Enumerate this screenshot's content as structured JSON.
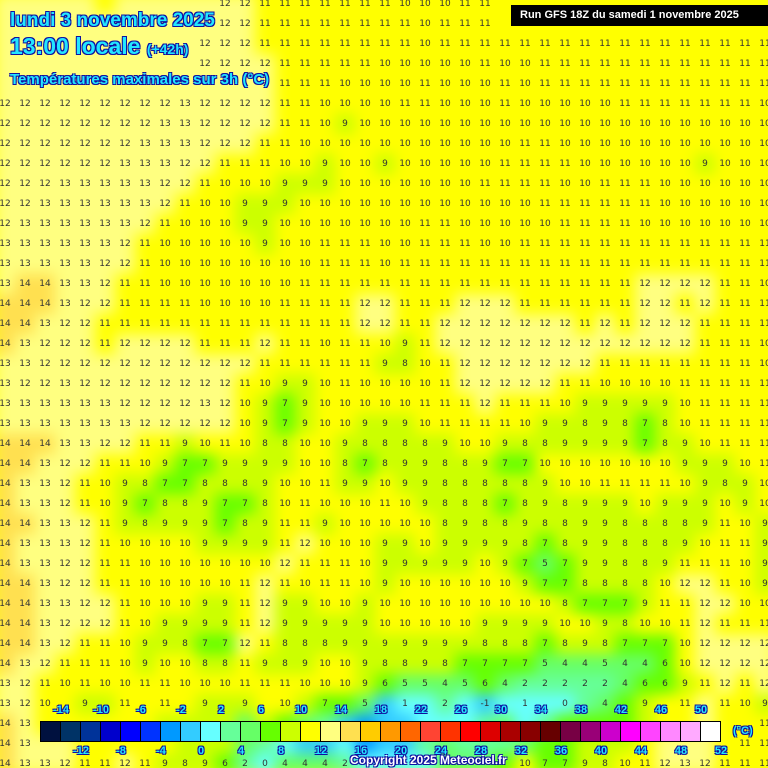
{
  "header": {
    "date": "lundi 3 novembre 2025",
    "time": "13:00 locale",
    "lead": "(+42h)",
    "parameter": "Températures maximales sur 3h (°C)",
    "run": "Run GFS 18Z du samedi 1 novembre 2025"
  },
  "legend": {
    "unit": "(°C)",
    "top_labels": [
      "-14",
      "-10",
      "-6",
      "-2",
      "2",
      "6",
      "10",
      "14",
      "18",
      "22",
      "26",
      "30",
      "34",
      "38",
      "42",
      "46",
      "50"
    ],
    "bottom_labels": [
      "-12",
      "-8",
      "-4",
      "0",
      "4",
      "8",
      "12",
      "16",
      "20",
      "24",
      "28",
      "32",
      "36",
      "40",
      "44",
      "48",
      "52"
    ],
    "colors": [
      "#00113f",
      "#003366",
      "#003399",
      "#0000cc",
      "#0000ff",
      "#0033ff",
      "#0099ff",
      "#33ccff",
      "#66ffff",
      "#66ff99",
      "#66ff66",
      "#66ff00",
      "#ccff00",
      "#ffff00",
      "#ffff80",
      "#ffe050",
      "#ffcc00",
      "#ff9900",
      "#ff6600",
      "#ff4433",
      "#ff3300",
      "#ff0000",
      "#dd0000",
      "#aa0000",
      "#880000",
      "#660000",
      "#770044",
      "#990077",
      "#cc00cc",
      "#ff00ff",
      "#ff44ff",
      "#ff88ff",
      "#ffaaff",
      "#ffffff"
    ]
  },
  "copyright": "Copyright 2025 Meteociel.fr",
  "grid_values": [
    "12 12 12 12 12 11 12 12 12 12 12 12 12 11 11 11 11 11 11 11 10 10 10 11 11 11 11 11 10 11 11 10 11 11 11 11 11 11 11",
    "12 12 12 12 12 12 12 12 12 12 12 12 12 11 11 11 11 11 11 11 11 10 11 11 11 11 11 11 11 11 11 11 11 11 11 11 11 11 11",
    "12 12 12 12 12 12 12 12 12 12 12 12 12 11 11 11 11 11 11 11 11 10 11 11 11 11 11 11 11 11 11 11 11 11 11 11 11 11 11",
    "12 12 12 12 12 12 12 12 12 12 12 12 12 12 11 11 11 11 11 10 10 10 10 10 11 10 10 11 11 11 11 11 11 11 11 11 11 11 11",
    "12 12 12 12 12 12 12 12 12 12 12 12 12 12 11 11 11 10 10 10 10 11 10 10 10 11 10 11 11 11 11 11 11 11 11 11 11 11 11",
    "12 12 12 12 12 12 12 12 12 13 12 12 12 12 11 11 10 10 10 10 11 11 10 10 10 11 10 10 10 10 10 11 11 11 11 11 11 11 10",
    "12 12 12 12 12 12 12 12 13 13 12 12 12 12 11 11 10 9 10 10 10 10 10 10 10 10 10 10 10 10 10 10 10 10 10 10 10 10 10",
    "12 12 12 12 12 12 12 13 13 13 12 12 12 11 11 10 10 10 10 10 10 10 10 10 10 10 11 11 10 10 10 10 10 10 10 10 10 10 10",
    "12 12 12 12 12 12 13 13 13 12 12 11 11 11 10 10 9 10 10 9 10 10 10 10 10 11 11 11 11 10 10 10 10 10 10 9 10 10 10",
    "12 12 12 13 13 13 13 13 12 12 11 10 10 10 9 9 9 10 10 10 10 10 10 10 11 11 11 11 10 10 11 11 11 10 10 10 10 10 10",
    "12 12 13 13 13 13 13 13 12 11 10 10 9 9 9 10 10 10 10 10 10 10 10 10 10 10 10 11 11 11 11 11 11 10 10 10 10 10 10",
    "12 13 13 13 13 13 13 12 11 10 10 10 9 9 10 10 10 10 10 10 10 11 11 10 10 10 10 10 11 11 11 11 10 10 10 10 10 10 10",
    "13 13 13 13 13 13 12 11 10 10 10 10 10 9 10 10 11 11 11 10 10 11 11 11 10 10 11 11 11 11 11 11 11 11 11 11 11 11 11",
    "13 13 13 13 13 12 12 11 10 10 10 10 10 10 10 10 11 11 11 10 11 11 11 11 11 11 11 11 11 11 11 11 11 11 11 11 11 11 11",
    "13 14 14 13 13 12 11 11 10 10 10 10 10 10 10 11 11 11 11 11 11 11 11 11 11 11 11 11 11 11 11 11 12 12 12 12 11 11 10",
    "14 14 14 13 12 12 11 11 11 11 10 10 10 10 11 11 11 11 12 12 11 11 11 12 12 12 11 11 11 11 11 11 12 12 11 12 11 11 11",
    "14 14 13 12 12 11 11 11 11 11 11 11 11 11 11 11 11 11 12 12 11 11 12 12 12 12 12 12 12 11 12 11 12 12 12 11 11 11 11",
    "14 13 12 12 12 11 12 12 12 12 11 11 11 12 11 11 10 11 11 10 9 11 12 12 12 12 12 12 12 12 12 12 12 12 12 11 11 11 10",
    "13 13 12 12 12 12 12 12 12 12 12 12 12 11 11 11 11 11 11 9 8 10 11 12 12 12 12 12 12 12 11 11 11 11 11 11 11 11 10",
    "13 12 12 13 12 12 12 12 12 12 12 12 11 10 9 9 10 11 10 10 10 10 11 12 12 12 12 12 11 11 10 10 10 10 11 11 11 11 11",
    "13 13 13 13 13 13 12 12 12 12 13 12 10 9 7 9 10 10 10 10 10 11 11 11 12 11 11 11 10 9 9 9 9 9 10 11 11 11 11",
    "13 13 13 13 13 13 13 12 12 12 12 12 10 9 7 9 10 10 9 9 9 10 11 11 11 11 10 9 9 8 9 8 7 8 10 11 11 11 11",
    "14 14 14 13 13 12 12 11 11 9 10 11 10 8 8 10 10 9 8 8 8 8 9 10 10 9 8 8 9 9 9 9 7 8 9 10 11 11 11",
    "14 14 13 12 12 11 11 10 9 7 7 9 9 9 9 10 10 8 7 8 9 9 8 8 9 7 7 10 10 10 10 10 10 10 9 9 9 10 11",
    "14 13 13 12 11 10 9 8 7 7 8 8 8 9 10 10 11 9 9 10 9 9 8 8 8 8 8 9 10 10 11 11 11 11 10 9 8 9 10",
    "14 13 13 12 11 10 9 7 8 8 9 7 7 8 10 11 10 10 10 11 10 9 8 8 8 7 8 9 8 9 9 9 10 9 9 9 10 9 10",
    "14 14 13 13 12 11 9 8 9 9 9 7 8 9 11 11 9 10 10 10 10 10 8 9 8 8 9 8 8 9 9 8 8 8 8 9 11 10 9",
    "14 13 13 13 12 11 10 10 10 10 9 9 9 9 11 12 10 10 10 9 9 10 9 9 9 9 8 7 8 9 9 8 8 8 9 10 11 11 9",
    "14 13 13 12 12 11 11 10 10 10 10 10 10 10 12 11 11 11 10 9 9 9 9 9 10 9 7 5 7 9 9 8 8 9 11 11 11 10 9",
    "14 14 13 12 12 11 11 10 10 10 10 10 11 12 11 10 11 11 10 9 10 10 10 10 10 10 9 7 7 8 8 8 8 10 12 12 11 10 9",
    "14 14 13 13 12 12 11 10 10 10 9 9 11 12 9 9 10 10 9 10 10 10 10 10 10 10 10 10 8 7 7 7 9 11 11 12 12 10 10",
    "14 14 13 12 12 12 11 10 9 9 9 9 11 12 9 9 9 9 9 10 10 10 10 10 9 9 9 9 10 10 9 8 10 10 11 12 11 11 11",
    "14 14 13 12 11 11 10 9 9 8 7 7 12 11 8 8 8 9 9 9 9 9 9 9 8 8 8 7 8 9 8 7 7 7 10 12 12 12 12",
    "14 13 12 11 11 11 10 9 10 10 8 8 11 9 8 9 10 10 9 8 8 9 8 7 7 7 7 5 4 4 5 4 4 6 10 12 12 12 12",
    "13 12 11 10 11 10 10 11 11 10 10 10 11 11 11 10 10 10 9 6 5 5 4 5 6 4 2 2 2 2 2 4 6 6 9 11 12 11 12",
    "13 12 10 10 9 9 11 11 11 10 9 8 9 10 10 8 7 6 5 -1 1 1 2 0 -1 0 1 0 0 2 4 6 9 11 11 12 11 10 9",
    "14 13 10 10 11 11 10 10 9 8 9 8 5 8 7 5 3 -2 -3 -1 -1 0 1 0 2 4 1 2 6 6 6 6 9 11 11 12 11 10 11",
    "14 13 12 12 10 10 11 11 10 8 9 8 5 3 1 -1 -1 0 -3 -2 -1 3 5 2 2 2 5 6 6 9 8 8 11 13 13 12 11 11 11",
    "14 13 13 12 11 11 12 11 9 8 9 6 2 0 4 4 4 2 1 1 0 1 4 4 4 7 10 7 7 9 8 10 11 12 13 12 11 11 11"
  ]
}
